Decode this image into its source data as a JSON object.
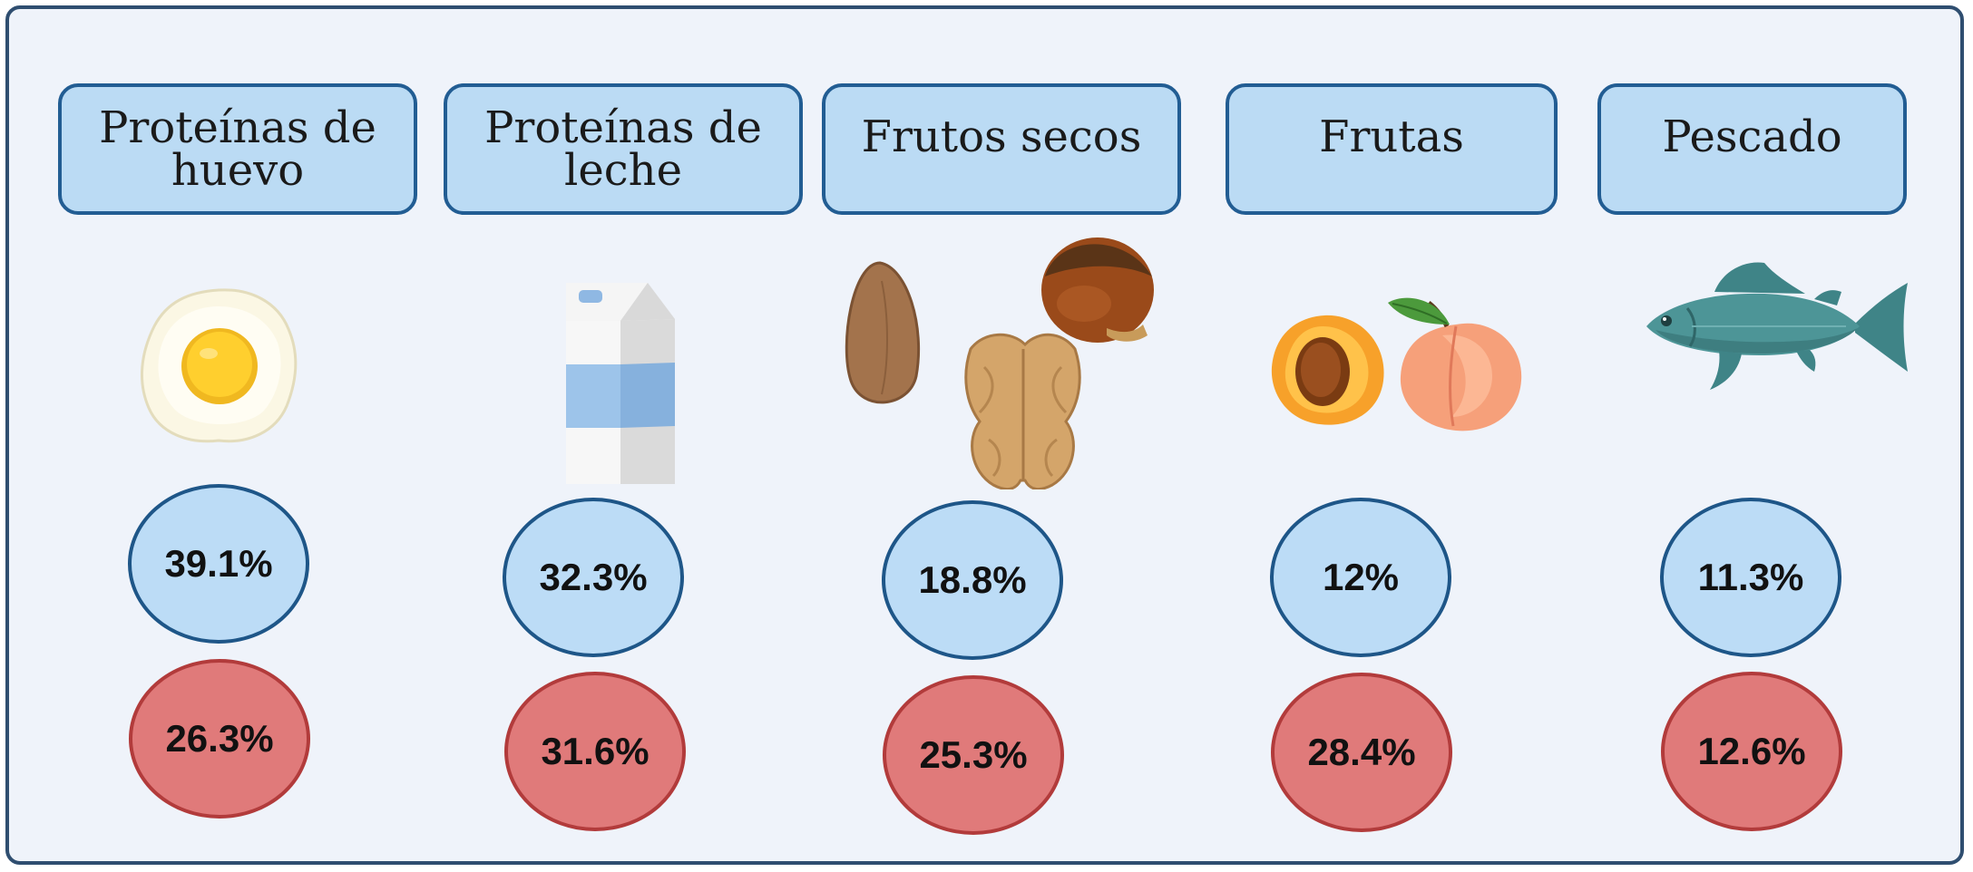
{
  "categories": [
    {
      "label": "Proteínas de huevo",
      "icon": "fried-egg-icon",
      "blue_value": "39.1%",
      "red_value": "26.3%"
    },
    {
      "label": "Proteínas de leche",
      "icon": "milk-carton-icon",
      "blue_value": "32.3%",
      "red_value": "31.6%"
    },
    {
      "label": "Frutos secos",
      "icon": "nuts-icon",
      "blue_value": "18.8%",
      "red_value": "25.3%"
    },
    {
      "label": "Frutas",
      "icon": "peach-icon",
      "blue_value": "12%",
      "red_value": "28.4%"
    },
    {
      "label": "Pescado",
      "icon": "fish-icon",
      "blue_value": "11.3%",
      "red_value": "12.6%"
    }
  ],
  "colors": {
    "panel_background": "#eff3fa",
    "panel_border": "#2f4e70",
    "label_fill": "#bbdbf4",
    "label_border": "#225d93",
    "blue_bubble": "#bcdcf6",
    "red_bubble": "#e07a7a"
  }
}
